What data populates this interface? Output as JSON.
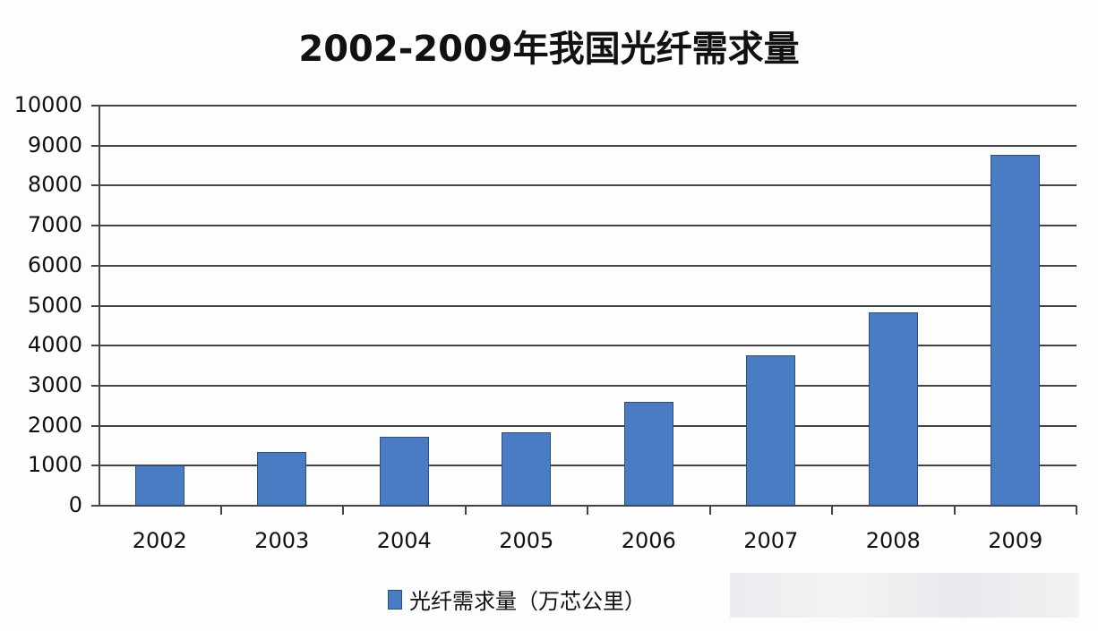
{
  "chart_data": {
    "type": "bar",
    "title": "2002-2009年我国光纤需求量",
    "categories": [
      "2002",
      "2003",
      "2004",
      "2005",
      "2006",
      "2007",
      "2008",
      "2009"
    ],
    "series": [
      {
        "name": "光纤需求量（万芯公里）",
        "values": [
          1000,
          1350,
          1730,
          1830,
          2600,
          3750,
          4830,
          8780
        ],
        "color": "#4a7cc3"
      }
    ],
    "xlabel": "",
    "ylabel": "",
    "ylim": [
      0,
      10000
    ],
    "yticks": [
      0,
      1000,
      2000,
      3000,
      4000,
      5000,
      6000,
      7000,
      8000,
      9000,
      10000
    ],
    "grid": true,
    "legend_position": "bottom"
  }
}
